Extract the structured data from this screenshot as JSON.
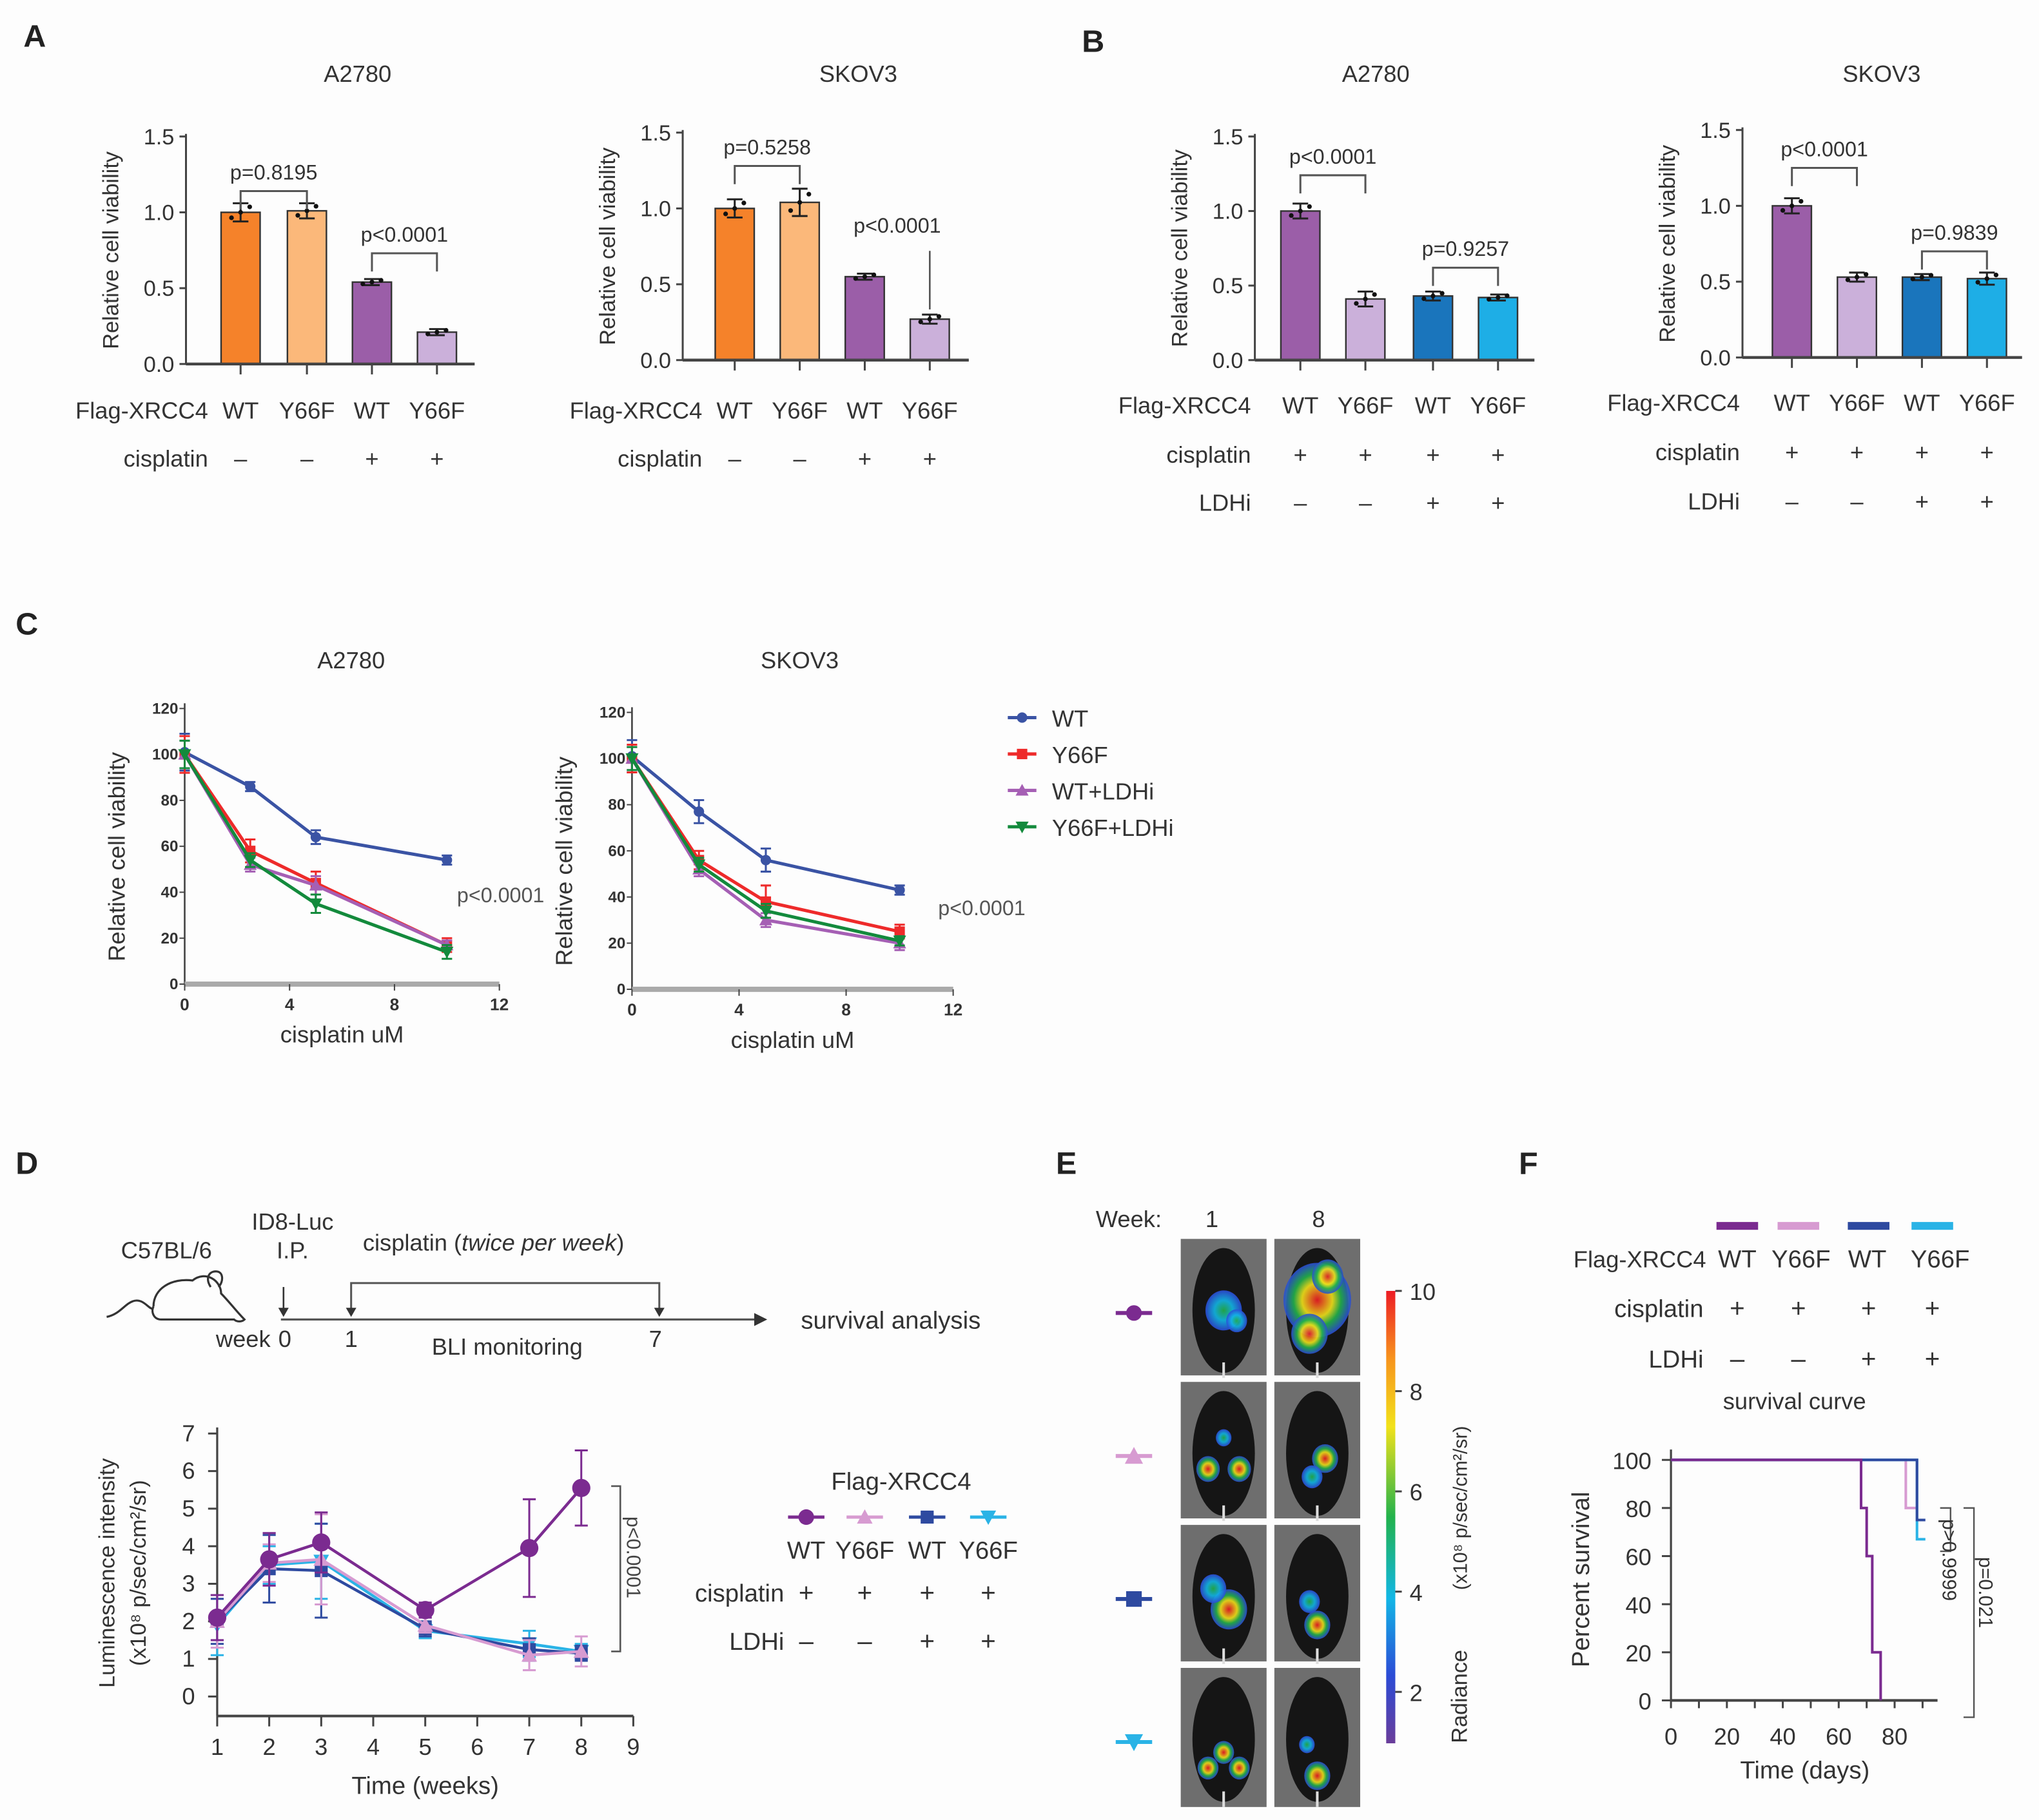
{
  "panel_labels": {
    "A": "A",
    "B": "B",
    "C": "C",
    "D": "D",
    "E": "E",
    "F": "F"
  },
  "chart_data": [
    {
      "type": "bar",
      "panel": "A",
      "title": "A2780",
      "ylabel": "Relative cell viability",
      "ylim": [
        0,
        1.5
      ],
      "yticks": [
        "0.0",
        "0.5",
        "1.0",
        "1.5"
      ],
      "values": [
        1.0,
        1.01,
        0.54,
        0.21
      ],
      "errors": [
        0.06,
        0.05,
        0.02,
        0.02
      ],
      "colors": [
        "#f5822a",
        "#fbb87a",
        "#9b5ea8",
        "#cbb0da"
      ],
      "conditions": [
        {
          "label": "Flag-XRCC4",
          "values": [
            "WT",
            "Y66F",
            "WT",
            "Y66F"
          ]
        },
        {
          "label": "cisplatin",
          "values": [
            "–",
            "–",
            "+",
            "+"
          ]
        }
      ],
      "comparisons": [
        {
          "text": "p=0.8195",
          "bars": [
            0,
            1
          ],
          "y": 1.14
        },
        {
          "text": "p<0.0001",
          "bars": [
            2,
            3
          ],
          "y": 0.73
        }
      ]
    },
    {
      "type": "bar",
      "panel": "A",
      "title": "SKOV3",
      "ylabel": "Relative cell viability",
      "ylim": [
        0,
        1.5
      ],
      "yticks": [
        "0.0",
        "0.5",
        "1.0",
        "1.5"
      ],
      "values": [
        1.0,
        1.04,
        0.55,
        0.27
      ],
      "errors": [
        0.06,
        0.09,
        0.02,
        0.03
      ],
      "colors": [
        "#f5822a",
        "#fbb87a",
        "#9b5ea8",
        "#cbb0da"
      ],
      "conditions": [
        {
          "label": "Flag-XRCC4",
          "values": [
            "WT",
            "Y66F",
            "WT",
            "Y66F"
          ]
        },
        {
          "label": "cisplatin",
          "values": [
            "–",
            "–",
            "+",
            "+"
          ]
        }
      ],
      "comparisons": [
        {
          "text": "p=0.5258",
          "bars": [
            0,
            1
          ],
          "y": 1.28
        },
        {
          "text": "p<0.0001",
          "bars": [
            3,
            3
          ],
          "y": 0.72
        }
      ]
    },
    {
      "type": "bar",
      "panel": "B",
      "title": "A2780",
      "ylabel": "Relative cell viability",
      "ylim": [
        0,
        1.5
      ],
      "yticks": [
        "0.0",
        "0.5",
        "1.0",
        "1.5"
      ],
      "values": [
        1.0,
        0.41,
        0.43,
        0.42
      ],
      "errors": [
        0.05,
        0.05,
        0.03,
        0.02
      ],
      "colors": [
        "#9b5ea8",
        "#cbb0da",
        "#1a75bc",
        "#1eaee6"
      ],
      "conditions": [
        {
          "label": "Flag-XRCC4",
          "values": [
            "WT",
            "Y66F",
            "WT",
            "Y66F"
          ]
        },
        {
          "label": "cisplatin",
          "values": [
            "+",
            "+",
            "+",
            "+"
          ]
        },
        {
          "label": "LDHi",
          "values": [
            "–",
            "–",
            "+",
            "+"
          ]
        }
      ],
      "comparisons": [
        {
          "text": "p<0.0001",
          "bars": [
            0,
            1
          ],
          "y": 1.24
        },
        {
          "text": "p=0.9257",
          "bars": [
            2,
            3
          ],
          "y": 0.62
        }
      ]
    },
    {
      "type": "bar",
      "panel": "B",
      "title": "SKOV3",
      "ylabel": "Relative cell viability",
      "ylim": [
        0,
        1.5
      ],
      "yticks": [
        "0.0",
        "0.5",
        "1.0",
        "1.5"
      ],
      "values": [
        1.0,
        0.53,
        0.53,
        0.52
      ],
      "errors": [
        0.05,
        0.03,
        0.02,
        0.04
      ],
      "colors": [
        "#9b5ea8",
        "#cbb0da",
        "#1a75bc",
        "#1eaee6"
      ],
      "conditions": [
        {
          "label": "Flag-XRCC4",
          "values": [
            "WT",
            "Y66F",
            "WT",
            "Y66F"
          ]
        },
        {
          "label": "cisplatin",
          "values": [
            "+",
            "+",
            "+",
            "+"
          ]
        },
        {
          "label": "LDHi",
          "values": [
            "–",
            "–",
            "+",
            "+"
          ]
        }
      ],
      "comparisons": [
        {
          "text": "p<0.0001",
          "bars": [
            0,
            1
          ],
          "y": 1.25
        },
        {
          "text": "p=0.9839",
          "bars": [
            2,
            3
          ],
          "y": 0.7
        }
      ]
    },
    {
      "type": "line",
      "panel": "C",
      "title": "A2780",
      "ylabel": "Relative cell viability",
      "xlabel": "cisplatin uM",
      "xlim": [
        0,
        12
      ],
      "ylim": [
        0,
        120
      ],
      "xticks": [
        "0",
        "4",
        "8",
        "12"
      ],
      "yticks": [
        "0",
        "20",
        "40",
        "60",
        "80",
        "100",
        "120"
      ],
      "x": [
        0,
        2.5,
        5,
        10
      ],
      "annotation": "p<0.0001",
      "series": [
        {
          "name": "WT",
          "color": "#3a53a4",
          "values": [
            101,
            86,
            64,
            54
          ],
          "errors": [
            8,
            2,
            3,
            2
          ]
        },
        {
          "name": "Y66F",
          "color": "#ee2a2a",
          "values": [
            100,
            58,
            44,
            17
          ],
          "errors": [
            8,
            5,
            5,
            3
          ]
        },
        {
          "name": "WT+LDHi",
          "color": "#a55fb4",
          "values": [
            100,
            52,
            43,
            17
          ],
          "errors": [
            6,
            3,
            4,
            2
          ]
        },
        {
          "name": "Y66F+LDHi",
          "color": "#138a3c",
          "values": [
            100,
            54,
            35,
            14
          ],
          "errors": [
            6,
            3,
            4,
            3
          ]
        }
      ]
    },
    {
      "type": "line",
      "panel": "C",
      "title": "SKOV3",
      "ylabel": "Relative cell viability",
      "xlabel": "cisplatin uM",
      "xlim": [
        0,
        12
      ],
      "ylim": [
        0,
        120
      ],
      "xticks": [
        "0",
        "4",
        "8",
        "12"
      ],
      "yticks": [
        "0",
        "20",
        "40",
        "60",
        "80",
        "100",
        "120"
      ],
      "x": [
        0,
        2.5,
        5,
        10
      ],
      "annotation": "p<0.0001",
      "legend": "right",
      "series": [
        {
          "name": "WT",
          "color": "#3a53a4",
          "values": [
            101,
            77,
            56,
            43
          ],
          "errors": [
            7,
            5,
            5,
            2
          ]
        },
        {
          "name": "Y66F",
          "color": "#ee2a2a",
          "values": [
            100,
            56,
            38,
            25
          ],
          "errors": [
            6,
            4,
            7,
            3
          ]
        },
        {
          "name": "WT+LDHi",
          "color": "#a55fb4",
          "values": [
            100,
            52,
            30,
            20
          ],
          "errors": [
            5,
            3,
            3,
            3
          ]
        },
        {
          "name": "Y66F+LDHi",
          "color": "#138a3c",
          "values": [
            100,
            54,
            34,
            21
          ],
          "errors": [
            5,
            3,
            3,
            2
          ]
        }
      ]
    },
    {
      "type": "line",
      "panel": "D",
      "ylabel": [
        "Luminescence intensity",
        "(x10⁸ p/sec/cm²/sr)"
      ],
      "xlabel": "Time (weeks)",
      "xlim": [
        1,
        9
      ],
      "ylim": [
        0,
        7
      ],
      "xticks": [
        "1",
        "2",
        "3",
        "4",
        "5",
        "6",
        "7",
        "8",
        "9"
      ],
      "yticks": [
        "0",
        "1",
        "2",
        "3",
        "4",
        "5",
        "6",
        "7"
      ],
      "x": [
        1,
        2,
        3,
        5,
        7,
        8
      ],
      "annotation": "p<0.0001",
      "legend_title": "Flag-XRCC4",
      "conditions": [
        {
          "label": "cisplatin",
          "values": [
            "+",
            "+",
            "+",
            "+"
          ]
        },
        {
          "label": "LDHi",
          "values": [
            "–",
            "–",
            "+",
            "+"
          ]
        }
      ],
      "series": [
        {
          "name": "WT",
          "marker": "circle",
          "color": "#7b2b90",
          "values": [
            2.1,
            3.65,
            4.1,
            2.3,
            3.95,
            5.55
          ],
          "errors": [
            0.6,
            0.7,
            0.8,
            0.2,
            1.3,
            1.0
          ]
        },
        {
          "name": "Y66F",
          "marker": "triangle-up",
          "color": "#d79bd1",
          "values": [
            2.0,
            3.55,
            3.65,
            1.9,
            1.1,
            1.2
          ],
          "errors": [
            0.7,
            0.5,
            1.2,
            0.2,
            0.4,
            0.4
          ]
        },
        {
          "name": "WT",
          "marker": "square",
          "color": "#2e4aa0",
          "values": [
            2.0,
            3.4,
            3.35,
            1.8,
            1.25,
            1.15
          ],
          "errors": [
            0.6,
            0.9,
            1.25,
            0.2,
            0.3,
            0.2
          ]
        },
        {
          "name": "Y66F",
          "marker": "triangle-down",
          "color": "#2ab3e6",
          "values": [
            1.9,
            3.5,
            3.6,
            1.75,
            1.4,
            1.2
          ],
          "errors": [
            0.8,
            0.5,
            1.0,
            0.2,
            0.35,
            0.2
          ]
        }
      ]
    },
    {
      "type": "line",
      "panel": "F",
      "title": "survival curve",
      "ylabel": "Percent survival",
      "xlabel": "Time (days)",
      "xlim": [
        0,
        95
      ],
      "ylim": [
        0,
        100
      ],
      "xticks": [
        "0",
        "20",
        "40",
        "60",
        "80"
      ],
      "yticks": [
        "0",
        "20",
        "40",
        "60",
        "80",
        "100"
      ],
      "legend_label": "Flag-XRCC4",
      "conditions": [
        {
          "label": "cisplatin",
          "values": [
            "+",
            "+",
            "+",
            "+"
          ]
        },
        {
          "label": "LDHi",
          "values": [
            "–",
            "–",
            "+",
            "+"
          ]
        }
      ],
      "annotations": [
        "p>0.9999",
        "p=0.021"
      ],
      "series": [
        {
          "name": "WT",
          "color": "#7b2b90",
          "steps": [
            [
              0,
              100
            ],
            [
              68,
              80
            ],
            [
              70,
              60
            ],
            [
              72,
              20
            ],
            [
              75,
              0
            ]
          ],
          "end": 75
        },
        {
          "name": "Y66F",
          "color": "#d79bd1",
          "steps": [
            [
              0,
              100
            ],
            [
              84,
              80
            ]
          ],
          "end": 88
        },
        {
          "name": "WT",
          "color": "#2e4aa0",
          "steps": [
            [
              0,
              100
            ],
            [
              88,
              75
            ]
          ],
          "end": 91
        },
        {
          "name": "Y66F",
          "color": "#2ab3e6",
          "steps": [
            [
              0,
              100
            ],
            [
              88,
              67
            ]
          ],
          "end": 91
        }
      ]
    }
  ],
  "schematic": {
    "strain": "C57BL/6",
    "injection": "ID8-Luc",
    "route": "I.P.",
    "treatment": "cisplatin (",
    "treatment_italic": "twice per week",
    "treatment_close": ")",
    "week_label": "week",
    "ticks": [
      "0",
      "1",
      "7"
    ],
    "monitoring": "BLI monitoring",
    "endpoint": "survival analysis"
  },
  "imaging": {
    "week_label": "Week:",
    "weeks": [
      "1",
      "8"
    ],
    "groups": [
      {
        "marker": "circle",
        "color": "#7b2b90"
      },
      {
        "marker": "triangle-up",
        "color": "#d79bd1"
      },
      {
        "marker": "square",
        "color": "#2e4aa0"
      },
      {
        "marker": "triangle-down",
        "color": "#2ab3e6"
      }
    ],
    "colorbar": {
      "ticks": [
        "10",
        "8",
        "6",
        "4",
        "2"
      ],
      "label": "Radiance",
      "unit": "(x10⁸ p/sec/cm²/sr)",
      "range": [
        1,
        10
      ]
    }
  }
}
